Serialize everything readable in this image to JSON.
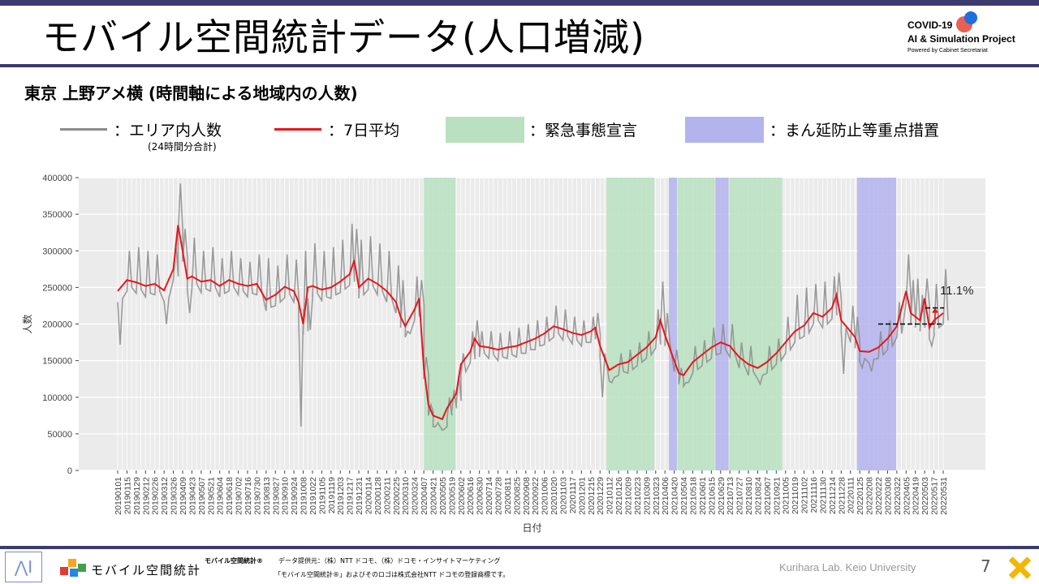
{
  "page": {
    "title": "モバイル空間統計データ(人口増減)",
    "subtitle": "東京 上野アメ横 (時間軸による地域内の人数)",
    "page_number": "7",
    "accent_color": "#3b3b6e"
  },
  "logo": {
    "line1": "COVID-19",
    "line2": "AI & Simulation Project",
    "line3": "Powered by Cabinet Secretariat"
  },
  "legend": {
    "gray_label": "：エリア内人数",
    "gray_note": "(24時間分合計)",
    "red_label": "：7日平均",
    "green_label": "：緊急事態宣言",
    "blue_label": "：まん延防止等重点措置",
    "gray_color": "#8c8c8c",
    "red_color": "#e8161b",
    "green_color": "#b9e0c0",
    "blue_color": "#b3b3ee"
  },
  "footer": {
    "brand": "モバイル空間統計",
    "brand_mark": "モバイル空間統計®",
    "source": "データ提供元：（株）NTT ドコモ、（株）ドコモ・インサイトマーケティング",
    "trademark": "「モバイル空間統計®」およびそのロゴは株式会社NTT ドコモの登録商標です。",
    "lab": "Kurihara Lab. Keio University"
  },
  "chart_data": {
    "type": "line",
    "xlabel": "日付",
    "ylabel": "人数",
    "ylim": [
      0,
      400000
    ],
    "yticks": [
      0,
      50000,
      100000,
      150000,
      200000,
      250000,
      300000,
      350000,
      400000
    ],
    "ytick_labels": [
      "0",
      "50000",
      "100000",
      "150000",
      "200000",
      "250000",
      "300000",
      "350000",
      "400000"
    ],
    "x_tick_labels": [
      "20190101",
      "20190115",
      "20190129",
      "20190212",
      "20190226",
      "20190312",
      "20190326",
      "20190409",
      "20190423",
      "20190507",
      "20190521",
      "20190604",
      "20190618",
      "20190702",
      "20190716",
      "20190730",
      "20190813",
      "20190827",
      "20190910",
      "20190924",
      "20191008",
      "20191022",
      "20191105",
      "20191119",
      "20191203",
      "20191217",
      "20191231",
      "20200114",
      "20200128",
      "20200211",
      "20200225",
      "20200310",
      "20200324",
      "20200407",
      "20200421",
      "20200505",
      "20200519",
      "20200602",
      "20200616",
      "20200630",
      "20200714",
      "20200728",
      "20200811",
      "20200825",
      "20200908",
      "20200922",
      "20201006",
      "20201020",
      "20201103",
      "20201117",
      "20201201",
      "20201215",
      "20201229",
      "20210112",
      "20210126",
      "20210209",
      "20210223",
      "20210309",
      "20210323",
      "20210406",
      "20210420",
      "20210504",
      "20210518",
      "20210601",
      "20210615",
      "20210629",
      "20210713",
      "20210727",
      "20210810",
      "20210824",
      "20210907",
      "20210921",
      "20211005",
      "20211019",
      "20211102",
      "20211116",
      "20211130",
      "20211214",
      "20211228",
      "20220111",
      "20220125",
      "20220208",
      "20220222",
      "20220308",
      "20220322",
      "20220405",
      "20220419",
      "20220503",
      "20220517",
      "20220531"
    ],
    "grid": true,
    "shaded_periods": [
      {
        "kind": "緊急事態宣言",
        "start": "20200407",
        "end": "20200525"
      },
      {
        "kind": "緊急事態宣言",
        "start": "20210108",
        "end": "20210321"
      },
      {
        "kind": "まん延防止等重点措置",
        "start": "20210412",
        "end": "20210424"
      },
      {
        "kind": "緊急事態宣言",
        "start": "20210425",
        "end": "20210620"
      },
      {
        "kind": "まん延防止等重点措置",
        "start": "20210621",
        "end": "20210711"
      },
      {
        "kind": "緊急事態宣言",
        "start": "20210712",
        "end": "20210930"
      },
      {
        "kind": "まん延防止等重点措置",
        "start": "20220121",
        "end": "20220321"
      }
    ],
    "annotation": {
      "text": "11.1%",
      "from": 200000,
      "to": 222000
    },
    "series": [
      {
        "name": "7日平均",
        "points": [
          [
            "20190101",
            245000
          ],
          [
            "20190115",
            260000
          ],
          [
            "20190129",
            257000
          ],
          [
            "20190212",
            252000
          ],
          [
            "20190226",
            255000
          ],
          [
            "20190312",
            246000
          ],
          [
            "20190326",
            275000
          ],
          [
            "20190402",
            335000
          ],
          [
            "20190409",
            300000
          ],
          [
            "20190416",
            262000
          ],
          [
            "20190423",
            265000
          ],
          [
            "20190507",
            258000
          ],
          [
            "20190521",
            260000
          ],
          [
            "20190604",
            252000
          ],
          [
            "20190618",
            260000
          ],
          [
            "20190702",
            255000
          ],
          [
            "20190716",
            252000
          ],
          [
            "20190730",
            255000
          ],
          [
            "20190813",
            233000
          ],
          [
            "20190827",
            240000
          ],
          [
            "20190910",
            251000
          ],
          [
            "20190924",
            245000
          ],
          [
            "20191001",
            230000
          ],
          [
            "20191008",
            200000
          ],
          [
            "20191015",
            250000
          ],
          [
            "20191022",
            252000
          ],
          [
            "20191105",
            247000
          ],
          [
            "20191119",
            250000
          ],
          [
            "20191203",
            258000
          ],
          [
            "20191217",
            268000
          ],
          [
            "20191224",
            287000
          ],
          [
            "20191231",
            250000
          ],
          [
            "20200114",
            262000
          ],
          [
            "20200128",
            255000
          ],
          [
            "20200211",
            245000
          ],
          [
            "20200225",
            230000
          ],
          [
            "20200303",
            210000
          ],
          [
            "20200310",
            197000
          ],
          [
            "20200324",
            220000
          ],
          [
            "20200331",
            235000
          ],
          [
            "20200407",
            140000
          ],
          [
            "20200414",
            90000
          ],
          [
            "20200421",
            75000
          ],
          [
            "20200505",
            70000
          ],
          [
            "20200512",
            85000
          ],
          [
            "20200519",
            95000
          ],
          [
            "20200526",
            105000
          ],
          [
            "20200602",
            145000
          ],
          [
            "20200616",
            162000
          ],
          [
            "20200623",
            180000
          ],
          [
            "20200630",
            170000
          ],
          [
            "20200714",
            168000
          ],
          [
            "20200728",
            165000
          ],
          [
            "20200811",
            168000
          ],
          [
            "20200825",
            170000
          ],
          [
            "20200908",
            175000
          ],
          [
            "20200922",
            180000
          ],
          [
            "20201006",
            187000
          ],
          [
            "20201020",
            197000
          ],
          [
            "20201103",
            193000
          ],
          [
            "20201117",
            188000
          ],
          [
            "20201201",
            185000
          ],
          [
            "20201215",
            190000
          ],
          [
            "20201222",
            195000
          ],
          [
            "20201229",
            170000
          ],
          [
            "20210112",
            137000
          ],
          [
            "20210126",
            145000
          ],
          [
            "20210209",
            148000
          ],
          [
            "20210223",
            158000
          ],
          [
            "20210309",
            168000
          ],
          [
            "20210323",
            182000
          ],
          [
            "20210330",
            205000
          ],
          [
            "20210406",
            185000
          ],
          [
            "20210420",
            150000
          ],
          [
            "20210427",
            133000
          ],
          [
            "20210504",
            130000
          ],
          [
            "20210518",
            148000
          ],
          [
            "20210601",
            158000
          ],
          [
            "20210615",
            168000
          ],
          [
            "20210629",
            175000
          ],
          [
            "20210713",
            170000
          ],
          [
            "20210727",
            155000
          ],
          [
            "20210810",
            145000
          ],
          [
            "20210824",
            140000
          ],
          [
            "20210907",
            148000
          ],
          [
            "20210921",
            160000
          ],
          [
            "20211005",
            175000
          ],
          [
            "20211019",
            190000
          ],
          [
            "20211102",
            198000
          ],
          [
            "20211116",
            215000
          ],
          [
            "20211130",
            210000
          ],
          [
            "20211214",
            222000
          ],
          [
            "20211221",
            240000
          ],
          [
            "20211228",
            205000
          ],
          [
            "20220111",
            190000
          ],
          [
            "20220118",
            182000
          ],
          [
            "20220125",
            163000
          ],
          [
            "20220208",
            162000
          ],
          [
            "20220222",
            168000
          ],
          [
            "20220308",
            180000
          ],
          [
            "20220322",
            197000
          ],
          [
            "20220405",
            245000
          ],
          [
            "20220412",
            215000
          ],
          [
            "20220419",
            210000
          ],
          [
            "20220426",
            205000
          ],
          [
            "20220503",
            235000
          ],
          [
            "20220510",
            195000
          ],
          [
            "20220517",
            205000
          ],
          [
            "20220531",
            215000
          ]
        ]
      },
      {
        "name": "エリア内人数",
        "points": [
          [
            "20190101",
            172000
          ],
          [
            "20190115",
            300000
          ],
          [
            "20190129",
            305000
          ],
          [
            "20190212",
            300000
          ],
          [
            "20190226",
            295000
          ],
          [
            "20190312",
            200000
          ],
          [
            "20190326",
            310000
          ],
          [
            "20190402",
            392000
          ],
          [
            "20190409",
            330000
          ],
          [
            "20190416",
            215000
          ],
          [
            "20190423",
            318000
          ],
          [
            "20190507",
            300000
          ],
          [
            "20190521",
            305000
          ],
          [
            "20190604",
            290000
          ],
          [
            "20190618",
            300000
          ],
          [
            "20190702",
            290000
          ],
          [
            "20190716",
            285000
          ],
          [
            "20190730",
            295000
          ],
          [
            "20190813",
            290000
          ],
          [
            "20190827",
            280000
          ],
          [
            "20190910",
            295000
          ],
          [
            "20190924",
            288000
          ],
          [
            "20191001",
            60000
          ],
          [
            "20191008",
            300000
          ],
          [
            "20191015",
            192000
          ],
          [
            "20191022",
            310000
          ],
          [
            "20191105",
            300000
          ],
          [
            "20191119",
            305000
          ],
          [
            "20191203",
            315000
          ],
          [
            "20191217",
            337000
          ],
          [
            "20191224",
            330000
          ],
          [
            "20191231",
            315000
          ],
          [
            "20200114",
            320000
          ],
          [
            "20200128",
            310000
          ],
          [
            "20200211",
            300000
          ],
          [
            "20200225",
            280000
          ],
          [
            "20200303",
            260000
          ],
          [
            "20200310",
            190000
          ],
          [
            "20200324",
            265000
          ],
          [
            "20200331",
            260000
          ],
          [
            "20200407",
            155000
          ],
          [
            "20200414",
            90000
          ],
          [
            "20200421",
            60000
          ],
          [
            "20200505",
            57000
          ],
          [
            "20200512",
            100000
          ],
          [
            "20200519",
            110000
          ],
          [
            "20200526",
            130000
          ],
          [
            "20200602",
            160000
          ],
          [
            "20200616",
            190000
          ],
          [
            "20200623",
            205000
          ],
          [
            "20200630",
            190000
          ],
          [
            "20200714",
            190000
          ],
          [
            "20200728",
            188000
          ],
          [
            "20200811",
            190000
          ],
          [
            "20200825",
            195000
          ],
          [
            "20200908",
            200000
          ],
          [
            "20200922",
            205000
          ],
          [
            "20201006",
            210000
          ],
          [
            "20201020",
            225000
          ],
          [
            "20201103",
            220000
          ],
          [
            "20201117",
            210000
          ],
          [
            "20201201",
            205000
          ],
          [
            "20201215",
            210000
          ],
          [
            "20201222",
            215000
          ],
          [
            "20201229",
            100000
          ],
          [
            "20210112",
            120000
          ],
          [
            "20210126",
            160000
          ],
          [
            "20210209",
            165000
          ],
          [
            "20210223",
            175000
          ],
          [
            "20210309",
            190000
          ],
          [
            "20210323",
            220000
          ],
          [
            "20210330",
            258000
          ],
          [
            "20210406",
            215000
          ],
          [
            "20210420",
            165000
          ],
          [
            "20210427",
            140000
          ],
          [
            "20210504",
            120000
          ],
          [
            "20210518",
            170000
          ],
          [
            "20210601",
            178000
          ],
          [
            "20210615",
            195000
          ],
          [
            "20210629",
            200000
          ],
          [
            "20210713",
            200000
          ],
          [
            "20210727",
            175000
          ],
          [
            "20210810",
            170000
          ],
          [
            "20210824",
            118000
          ],
          [
            "20210907",
            170000
          ],
          [
            "20210921",
            180000
          ],
          [
            "20211005",
            210000
          ],
          [
            "20211019",
            240000
          ],
          [
            "20211102",
            250000
          ],
          [
            "20211116",
            255000
          ],
          [
            "20211130",
            258000
          ],
          [
            "20211214",
            265000
          ],
          [
            "20211221",
            270000
          ],
          [
            "20211228",
            132000
          ],
          [
            "20220111",
            225000
          ],
          [
            "20220118",
            210000
          ],
          [
            "20220125",
            140000
          ],
          [
            "20220208",
            135000
          ],
          [
            "20220222",
            190000
          ],
          [
            "20220308",
            205000
          ],
          [
            "20220322",
            230000
          ],
          [
            "20220405",
            295000
          ],
          [
            "20220412",
            260000
          ],
          [
            "20220419",
            262000
          ],
          [
            "20220426",
            240000
          ],
          [
            "20220503",
            262000
          ],
          [
            "20220510",
            170000
          ],
          [
            "20220517",
            255000
          ],
          [
            "20220531",
            275000
          ]
        ]
      }
    ]
  }
}
